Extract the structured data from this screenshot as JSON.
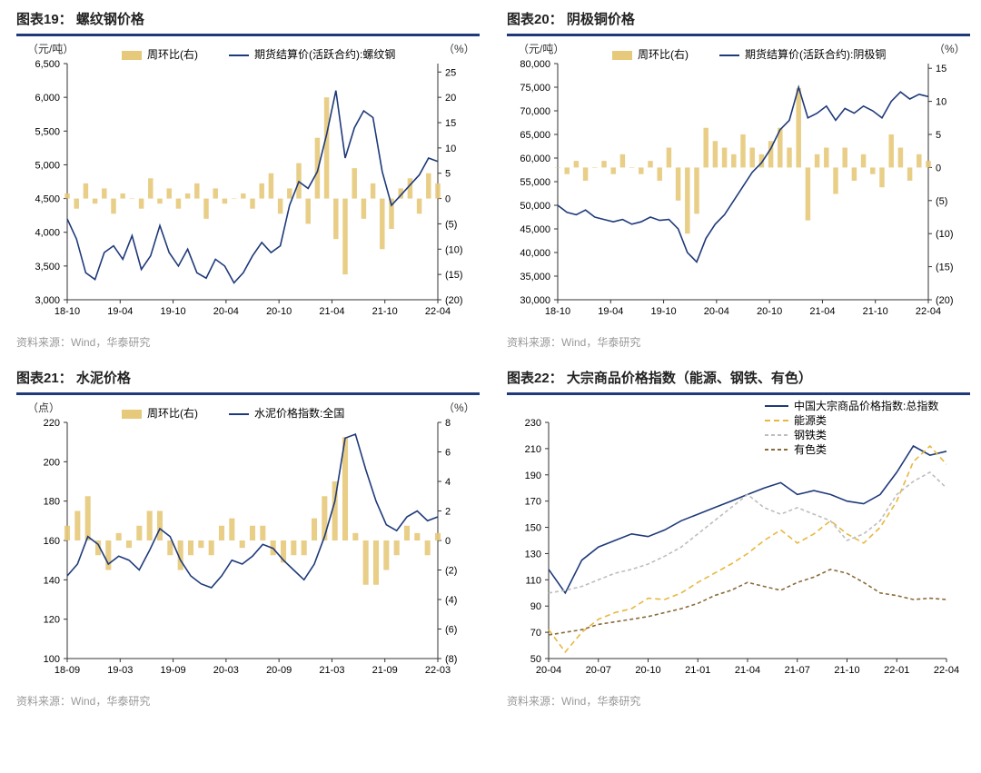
{
  "colors": {
    "navy": "#1f3a7a",
    "gold": "#e6c97a",
    "gray": "#bdbdbd",
    "brown": "#8a6a3a",
    "yellow_dash": "#e8b83e",
    "axis": "#333333",
    "bg": "#ffffff",
    "source": "#999999"
  },
  "typography": {
    "title_fontsize": 15,
    "label_fontsize": 12,
    "tick_fontsize": 11,
    "source_fontsize": 12
  },
  "charts": [
    {
      "id": "c19",
      "title": "图表19： 螺纹钢价格",
      "source": "资料来源：Wind，华泰研究",
      "type": "line+bar-dual-axis",
      "left_unit": "（元/吨）",
      "right_unit": "（%）",
      "legend": [
        {
          "label": "周环比(右)",
          "style": "bar",
          "color": "#e6c97a"
        },
        {
          "label": "期货结算价(活跃合约):螺纹钢",
          "style": "line",
          "color": "#1f3a7a"
        }
      ],
      "x_labels": [
        "18-10",
        "19-04",
        "19-10",
        "20-04",
        "20-10",
        "21-04",
        "21-10",
        "22-04"
      ],
      "y_left": {
        "min": 3000,
        "max": 6500,
        "step": 500
      },
      "y_right": {
        "min": -20,
        "max": 25,
        "step": 5,
        "zero_aligns_to_left": 4500
      },
      "line_color": "#1f3a7a",
      "bar_color": "#e6c97a",
      "line_data": [
        4200,
        3900,
        3400,
        3300,
        3700,
        3800,
        3600,
        3950,
        3450,
        3650,
        4100,
        3700,
        3500,
        3750,
        3400,
        3320,
        3600,
        3500,
        3250,
        3400,
        3650,
        3850,
        3700,
        3800,
        4400,
        4750,
        4650,
        4900,
        5450,
        6100,
        5100,
        5550,
        5800,
        5700,
        4900,
        4400,
        4550,
        4700,
        4850,
        5100,
        5050
      ],
      "bar_data": [
        1,
        -2,
        3,
        -1,
        2,
        -3,
        1,
        0,
        -2,
        4,
        -1,
        2,
        -2,
        1,
        3,
        -4,
        2,
        -1,
        0,
        1,
        -2,
        3,
        5,
        -3,
        2,
        7,
        -5,
        12,
        20,
        -8,
        -15,
        6,
        -4,
        3,
        -10,
        -6,
        2,
        4,
        -3,
        5,
        3
      ]
    },
    {
      "id": "c20",
      "title": "图表20： 阴极铜价格",
      "source": "资料来源：Wind，华泰研究",
      "type": "line+bar-dual-axis",
      "left_unit": "（元/吨）",
      "right_unit": "（%）",
      "legend": [
        {
          "label": "周环比(右)",
          "style": "bar",
          "color": "#e6c97a"
        },
        {
          "label": "期货结算价(活跃合约):阴极铜",
          "style": "line",
          "color": "#1f3a7a"
        }
      ],
      "x_labels": [
        "18-10",
        "19-04",
        "19-10",
        "20-04",
        "20-10",
        "21-04",
        "21-10",
        "22-04"
      ],
      "y_left": {
        "min": 30000,
        "max": 80000,
        "step": 5000
      },
      "y_right": {
        "min": -20,
        "max": 15,
        "step": 5,
        "zero_aligns_to_left": 58000
      },
      "line_color": "#1f3a7a",
      "bar_color": "#e6c97a",
      "line_data": [
        50000,
        48500,
        48000,
        49000,
        47500,
        47000,
        46500,
        47000,
        46000,
        46500,
        47500,
        46800,
        47000,
        45000,
        40000,
        38000,
        43000,
        46000,
        48000,
        51000,
        54000,
        57000,
        59000,
        62000,
        66000,
        68000,
        75000,
        68500,
        69500,
        71000,
        68000,
        70500,
        69500,
        71000,
        70000,
        68500,
        72000,
        74000,
        72500,
        73500,
        73000
      ],
      "bar_data": [
        0,
        -1,
        1,
        -2,
        0,
        1,
        -1,
        2,
        0,
        -1,
        1,
        -2,
        3,
        -5,
        -10,
        -7,
        6,
        4,
        3,
        2,
        5,
        3,
        2,
        4,
        6,
        3,
        12,
        -8,
        2,
        3,
        -4,
        3,
        -2,
        2,
        -1,
        -3,
        5,
        3,
        -2,
        2,
        1
      ]
    },
    {
      "id": "c21",
      "title": "图表21： 水泥价格",
      "source": "资料来源：Wind，华泰研究",
      "type": "line+bar-dual-axis",
      "left_unit": "（点）",
      "right_unit": "（%）",
      "legend": [
        {
          "label": "周环比(右)",
          "style": "bar",
          "color": "#e6c97a"
        },
        {
          "label": "水泥价格指数:全国",
          "style": "line",
          "color": "#1f3a7a"
        }
      ],
      "x_labels": [
        "18-09",
        "19-03",
        "19-09",
        "20-03",
        "20-09",
        "21-03",
        "21-09",
        "22-03"
      ],
      "y_left": {
        "min": 100,
        "max": 220,
        "step": 20
      },
      "y_right": {
        "min": -8,
        "max": 8,
        "step": 2,
        "zero_aligns_to_left": 160
      },
      "line_color": "#1f3a7a",
      "bar_color": "#e6c97a",
      "line_data": [
        142,
        148,
        162,
        158,
        148,
        152,
        150,
        145,
        155,
        166,
        162,
        150,
        142,
        138,
        136,
        142,
        150,
        148,
        152,
        158,
        156,
        150,
        145,
        140,
        148,
        162,
        180,
        212,
        214,
        196,
        180,
        168,
        165,
        172,
        175,
        170,
        172
      ],
      "bar_data": [
        1,
        2,
        3,
        -1,
        -2,
        0.5,
        -0.5,
        1,
        2,
        2,
        -1,
        -2,
        -1,
        -0.5,
        -1,
        1,
        1.5,
        -0.5,
        1,
        1,
        -1,
        -1.5,
        -1,
        -1,
        1.5,
        3,
        4,
        7,
        0.5,
        -3,
        -3,
        -2,
        -1,
        1,
        0.5,
        -1,
        0.5
      ]
    },
    {
      "id": "c22",
      "title": "图表22： 大宗商品价格指数（能源、钢铁、有色）",
      "source": "资料来源：Wind，华泰研究",
      "type": "multi-line",
      "left_unit": "",
      "right_unit": "",
      "legend": [
        {
          "label": "中国大宗商品价格指数:总指数",
          "style": "line",
          "color": "#1f3a7a",
          "dash": "none"
        },
        {
          "label": "能源类",
          "style": "line",
          "color": "#e8b83e",
          "dash": "6,4"
        },
        {
          "label": "钢铁类",
          "style": "line",
          "color": "#bdbdbd",
          "dash": "4,3"
        },
        {
          "label": "有色类",
          "style": "line",
          "color": "#8a6a3a",
          "dash": "4,3"
        }
      ],
      "x_labels": [
        "20-04",
        "20-07",
        "20-10",
        "21-01",
        "21-04",
        "21-07",
        "21-10",
        "22-01",
        "22-04"
      ],
      "y_left": {
        "min": 50,
        "max": 230,
        "step": 20
      },
      "series": [
        {
          "name": "total",
          "color": "#1f3a7a",
          "dash": "none",
          "data": [
            118,
            100,
            125,
            135,
            140,
            145,
            143,
            148,
            155,
            160,
            165,
            170,
            175,
            180,
            184,
            175,
            178,
            175,
            170,
            168,
            175,
            192,
            212,
            205,
            208
          ]
        },
        {
          "name": "energy",
          "color": "#e8b83e",
          "dash": "6,4",
          "data": [
            72,
            55,
            70,
            80,
            85,
            88,
            96,
            95,
            100,
            108,
            115,
            122,
            130,
            140,
            148,
            138,
            145,
            155,
            145,
            138,
            150,
            170,
            200,
            212,
            198
          ]
        },
        {
          "name": "steel",
          "color": "#bdbdbd",
          "dash": "4,3",
          "data": [
            100,
            102,
            105,
            110,
            115,
            118,
            122,
            128,
            135,
            145,
            155,
            165,
            175,
            165,
            160,
            165,
            160,
            155,
            140,
            145,
            155,
            175,
            185,
            192,
            180
          ]
        },
        {
          "name": "nonferrous",
          "color": "#8a6a3a",
          "dash": "4,3",
          "data": [
            68,
            70,
            72,
            76,
            78,
            80,
            82,
            85,
            88,
            92,
            98,
            102,
            108,
            105,
            102,
            108,
            112,
            118,
            115,
            108,
            100,
            98,
            95,
            96,
            95
          ]
        }
      ]
    }
  ]
}
